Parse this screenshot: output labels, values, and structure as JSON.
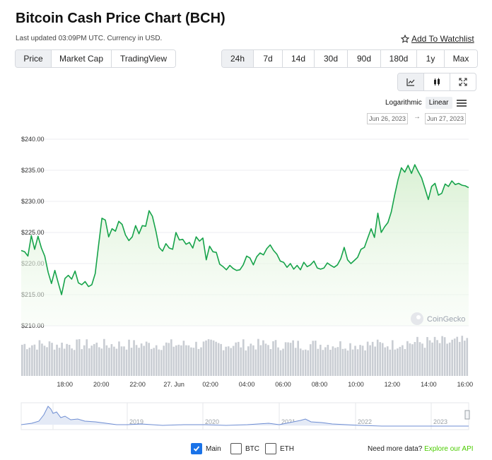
{
  "header": {
    "title": "Bitcoin Cash Price Chart (BCH)",
    "updated": "Last updated 03:09PM UTC. Currency in USD.",
    "watchlist": "Add To Watchlist"
  },
  "chart_tabs": [
    {
      "label": "Price",
      "active": true
    },
    {
      "label": "Market Cap",
      "active": false
    },
    {
      "label": "TradingView",
      "active": false
    }
  ],
  "range_tabs": [
    {
      "label": "24h",
      "active": true
    },
    {
      "label": "7d",
      "active": false
    },
    {
      "label": "14d",
      "active": false
    },
    {
      "label": "30d",
      "active": false
    },
    {
      "label": "90d",
      "active": false
    },
    {
      "label": "180d",
      "active": false
    },
    {
      "label": "1y",
      "active": false
    },
    {
      "label": "Max",
      "active": false
    }
  ],
  "scale": {
    "log": "Logarithmic",
    "linear": "Linear",
    "active": "Linear"
  },
  "date_range": {
    "from": "Jun 26, 2023",
    "to": "Jun 27, 2023",
    "arrow": "→"
  },
  "watermark": "CoinGecko",
  "legend": {
    "main": "Main",
    "btc": "BTC",
    "eth": "ETH",
    "main_checked": true,
    "btc_checked": false,
    "eth_checked": false
  },
  "footer": {
    "need_more": "Need more data?",
    "api": "Explore our API"
  },
  "colors": {
    "line": "#16a34a",
    "area_top": "#d8f0d2",
    "accent": "#4bcc00",
    "check": "#1a73e8"
  },
  "chart_data": {
    "type": "area",
    "ylim": [
      210,
      240
    ],
    "ytick_labels": [
      "$240.00",
      "$235.00",
      "$230.00",
      "$225.00",
      "$220.00",
      "$215.00",
      "$210.00"
    ],
    "yticks": [
      240,
      235,
      230,
      225,
      220,
      215,
      210
    ],
    "x_start": -8.4,
    "x_end": 16.2,
    "x_ticks": [
      {
        "label": "18:00",
        "h": -6
      },
      {
        "label": "20:00",
        "h": -4
      },
      {
        "label": "22:00",
        "h": -2
      },
      {
        "label": "27. Jun",
        "h": 0
      },
      {
        "label": "02:00",
        "h": 2
      },
      {
        "label": "04:00",
        "h": 4
      },
      {
        "label": "06:00",
        "h": 6
      },
      {
        "label": "08:00",
        "h": 8
      },
      {
        "label": "10:00",
        "h": 10
      },
      {
        "label": "12:00",
        "h": 12
      },
      {
        "label": "14:00",
        "h": 14
      },
      {
        "label": "16:00",
        "h": 16
      }
    ],
    "series": [
      {
        "values": [
          222.1,
          221.9,
          221.2,
          224.5,
          222.3,
          224.4,
          222.5,
          221.2,
          218.6,
          216.8,
          218.9,
          216.9,
          215.0,
          217.6,
          218.1,
          217.5,
          218.8,
          216.9,
          216.6,
          217.1,
          216.3,
          216.6,
          218.4,
          223.0,
          227.3,
          227.0,
          224.3,
          225.6,
          225.2,
          226.8,
          226.3,
          224.6,
          223.7,
          224.3,
          226.1,
          224.8,
          226.1,
          226.0,
          228.5,
          227.6,
          225.3,
          222.6,
          222.0,
          223.2,
          222.5,
          222.3,
          225.0,
          223.8,
          223.9,
          223.1,
          223.4,
          222.5,
          224.3,
          223.6,
          224.1,
          220.6,
          222.8,
          221.9,
          221.8,
          219.9,
          219.5,
          219.0,
          219.7,
          219.2,
          218.9,
          219.0,
          219.8,
          221.2,
          220.9,
          219.8,
          221.1,
          221.7,
          221.4,
          222.4,
          223.0,
          222.1,
          221.5,
          220.4,
          220.2,
          219.4,
          220.0,
          219.1,
          219.7,
          219.0,
          220.2,
          219.5,
          219.8,
          220.4,
          219.3,
          219.1,
          219.3,
          220.1,
          219.7,
          219.4,
          219.8,
          220.8,
          222.6,
          220.6,
          220.0,
          220.5,
          221.0,
          222.3,
          222.6,
          224.1,
          225.6,
          224.2,
          228.1,
          225.0,
          225.9,
          226.6,
          228.3,
          231.0,
          233.5,
          235.4,
          234.7,
          235.8,
          234.5,
          235.9,
          234.8,
          233.8,
          232.1,
          230.3,
          232.4,
          232.9,
          231.0,
          231.3,
          232.8,
          232.4,
          233.3,
          232.7,
          232.9,
          232.6,
          232.5,
          232.2
        ]
      }
    ],
    "volume": {
      "min_frac": 0.45,
      "max_frac": 0.95
    }
  }
}
